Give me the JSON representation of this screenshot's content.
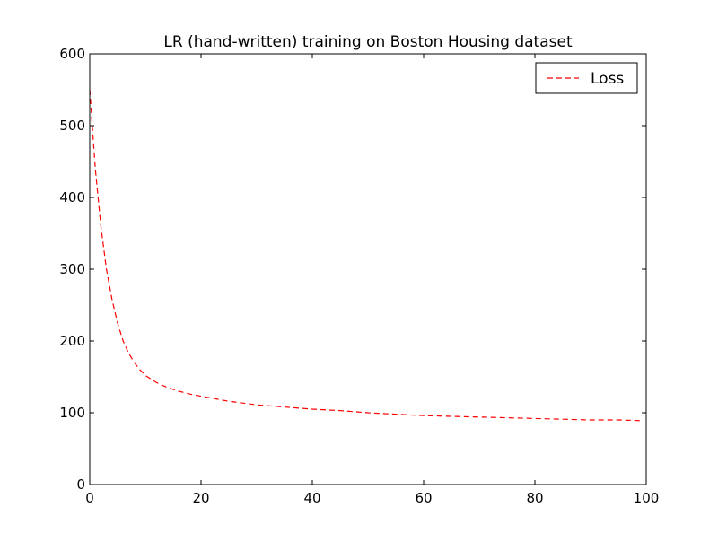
{
  "chart_data": {
    "type": "line",
    "title": "LR (hand-written) training on Boston Housing dataset",
    "xlabel": "",
    "ylabel": "",
    "xlim": [
      0,
      100
    ],
    "ylim": [
      0,
      600
    ],
    "xticks": [
      0,
      20,
      40,
      60,
      80,
      100
    ],
    "xtick_labels": [
      "0",
      "20",
      "40",
      "60",
      "80",
      "100"
    ],
    "yticks": [
      0,
      100,
      200,
      300,
      400,
      500,
      600
    ],
    "ytick_labels": [
      "0",
      "100",
      "200",
      "300",
      "400",
      "500",
      "600"
    ],
    "grid": false,
    "legend": {
      "placement": "top-right",
      "entries": [
        {
          "label": "Loss",
          "color": "#ff0000",
          "linestyle": "dashed"
        }
      ]
    },
    "series": [
      {
        "name": "Loss",
        "color": "#ff0000",
        "linestyle": "dashed",
        "x": [
          0,
          1,
          2,
          3,
          4,
          5,
          6,
          7,
          8,
          9,
          10,
          12,
          14,
          16,
          18,
          20,
          25,
          30,
          35,
          40,
          45,
          50,
          55,
          60,
          65,
          70,
          75,
          80,
          85,
          90,
          95,
          99
        ],
        "y": [
          550,
          440,
          360,
          300,
          258,
          225,
          200,
          183,
          170,
          160,
          152,
          142,
          135,
          130,
          126,
          123,
          116,
          111,
          108,
          105,
          103,
          100,
          98,
          96,
          95,
          94,
          93,
          92,
          91,
          90,
          90,
          89
        ]
      }
    ]
  }
}
